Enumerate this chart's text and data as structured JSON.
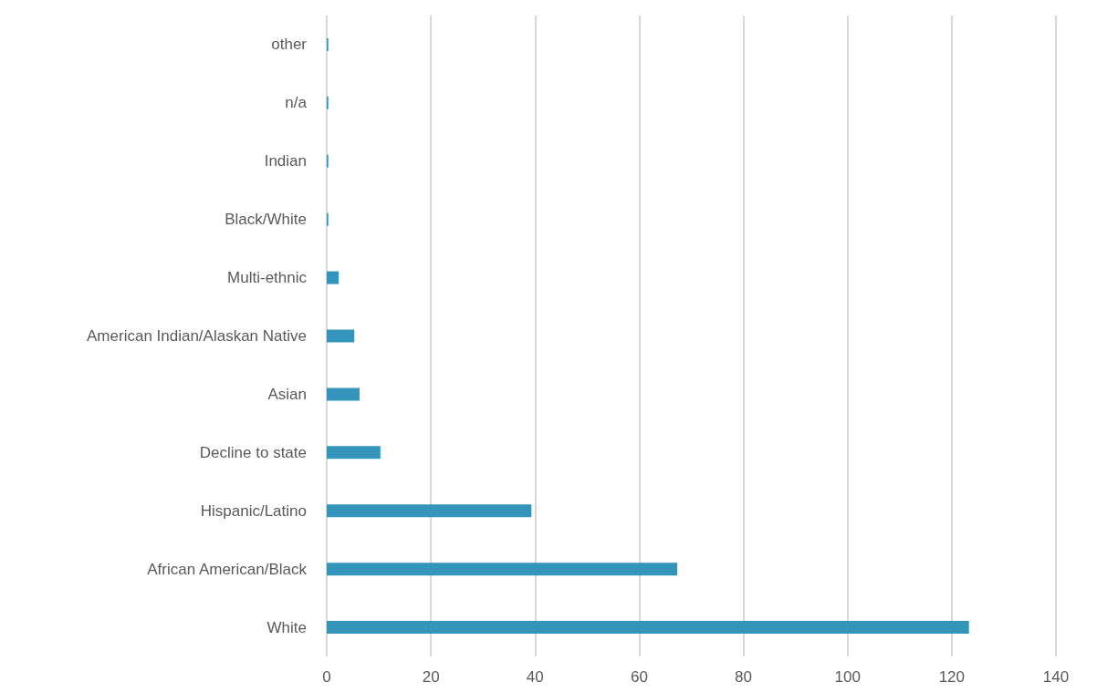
{
  "chart_data": {
    "type": "bar",
    "orientation": "horizontal",
    "categories": [
      "other",
      "n/a",
      "Indian",
      "Black/White",
      "Multi-ethnic",
      "American Indian/Alaskan Native",
      "Asian",
      "Decline to state",
      "Hispanic/Latino",
      "African American/Black",
      "White"
    ],
    "values": [
      0.3,
      0.3,
      0.3,
      0.3,
      2.3,
      5.3,
      6.3,
      10.3,
      39.3,
      67.3,
      123.3
    ],
    "color": "#3494ba",
    "xlim": [
      0,
      140
    ],
    "xticks": [
      0,
      20,
      40,
      60,
      80,
      100,
      120,
      140
    ],
    "grid": "x"
  }
}
